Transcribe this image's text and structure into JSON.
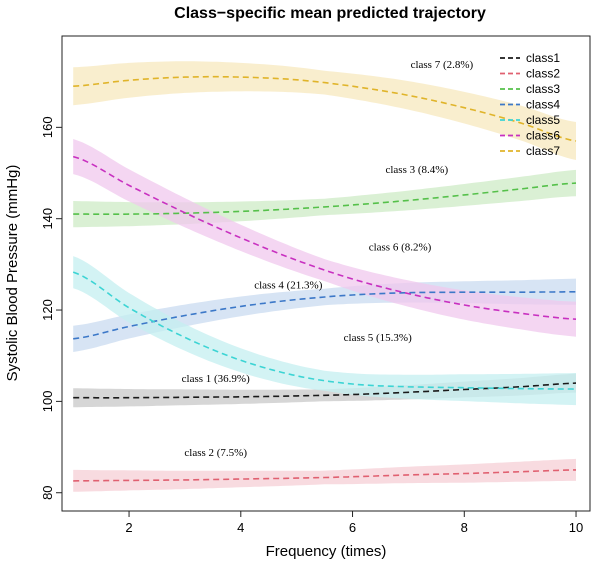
{
  "chart_data": {
    "type": "line",
    "title": "Class−specific mean predicted trajectory",
    "xlabel": "Frequency (times)",
    "ylabel": "Systolic Blood Pressure (mmHg)",
    "xlim": [
      0.8,
      10.25
    ],
    "ylim": [
      76,
      180
    ],
    "x_ticks": [
      2,
      4,
      6,
      8,
      10
    ],
    "y_ticks": [
      80,
      100,
      120,
      140,
      160
    ],
    "x": [
      1,
      2,
      3,
      4,
      5,
      6,
      7,
      8,
      9,
      10
    ],
    "legend_position": "top-right",
    "series": [
      {
        "name": "class1",
        "color": "#1a1a1a",
        "band": "#c8c8c8",
        "band_halfwidth": 1.3,
        "values": [
          100.8,
          100.8,
          100.9,
          101.0,
          101.2,
          101.5,
          102.0,
          102.6,
          103.2,
          104.0
        ],
        "annotation": {
          "text": "class 1 (36.9%)",
          "x": 3.55,
          "y": 104.2
        }
      },
      {
        "name": "class2",
        "color": "#e06070",
        "band": "#f6cfd5",
        "band_halfwidth": 1.5,
        "values": [
          82.6,
          82.7,
          82.8,
          83.0,
          83.2,
          83.5,
          83.9,
          84.2,
          84.6,
          85.0
        ],
        "annotation": {
          "text": "class 2 (7.5%)",
          "x": 3.55,
          "y": 88.0
        }
      },
      {
        "name": "class3",
        "color": "#55c04a",
        "band": "#cdebc6",
        "band_halfwidth": 1.8,
        "values": [
          141.0,
          141.0,
          141.2,
          141.6,
          142.2,
          143.0,
          144.0,
          145.2,
          146.5,
          147.8
        ],
        "annotation": {
          "text": "class 3 (8.4%)",
          "x": 7.15,
          "y": 150.0
        }
      },
      {
        "name": "class4",
        "color": "#3c78c8",
        "band": "#c9dbf0",
        "band_halfwidth": 1.8,
        "values": [
          113.7,
          116.4,
          118.8,
          120.8,
          122.3,
          123.3,
          123.8,
          123.9,
          123.9,
          124.0
        ],
        "annotation": {
          "text": "class 4 (21.3%)",
          "x": 4.85,
          "y": 124.7
        }
      },
      {
        "name": "class5",
        "color": "#3cd4d4",
        "band": "#c4eff0",
        "band_halfwidth": 2.2,
        "values": [
          128.3,
          120.5,
          114.0,
          109.0,
          105.6,
          103.8,
          103.2,
          103.0,
          102.8,
          102.7
        ],
        "annotation": {
          "text": "class 5 (15.3%)",
          "x": 6.45,
          "y": 113.2
        }
      },
      {
        "name": "class6",
        "color": "#c830c0",
        "band": "#f0c8ee",
        "band_halfwidth": 2.4,
        "values": [
          153.6,
          147.3,
          141.3,
          135.8,
          130.9,
          126.8,
          123.6,
          121.1,
          119.3,
          118.0
        ],
        "annotation": {
          "text": "class 6 (8.2%)",
          "x": 6.85,
          "y": 133.0
        }
      },
      {
        "name": "class7",
        "color": "#e0b42a",
        "band": "#f7e8bd",
        "band_halfwidth": 2.6,
        "values": [
          169.0,
          170.3,
          171.0,
          171.0,
          170.4,
          169.0,
          167.0,
          164.3,
          161.0,
          157.0
        ],
        "annotation": {
          "text": "class 7 (2.8%)",
          "x": 7.6,
          "y": 173.0
        }
      }
    ]
  }
}
